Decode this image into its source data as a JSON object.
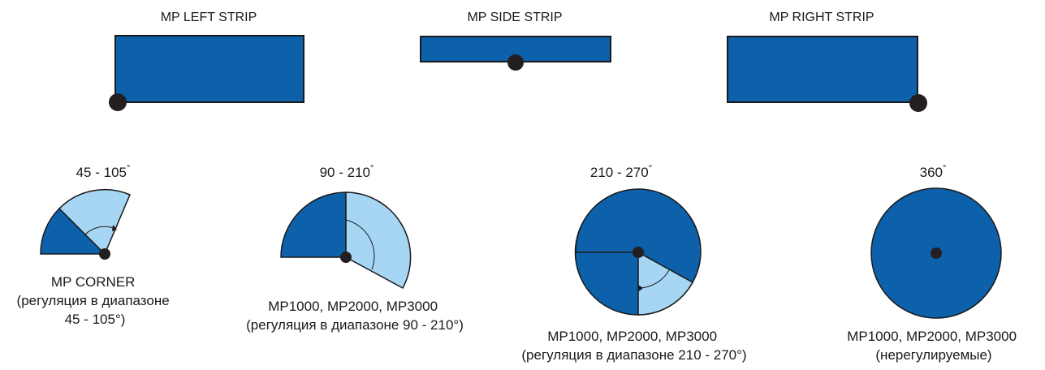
{
  "strips": [
    {
      "title": "MP LEFT STRIP"
    },
    {
      "title": "MP SIDE STRIP"
    },
    {
      "title": "MP RIGHT STRIP"
    }
  ],
  "sectors": [
    {
      "angle_label": "45 - 105",
      "caption": [
        "MP CORNER",
        "(регуляция в диапазоне",
        "45 - 105°)"
      ]
    },
    {
      "angle_label": "90 - 210",
      "caption": [
        "MP1000, MP2000, MP3000",
        "(регуляция в диапазоне 90 - 210°)"
      ]
    },
    {
      "angle_label": "210 - 270",
      "caption": [
        "MP1000, MP2000, MP3000",
        "(регуляция в диапазоне 210 - 270°)"
      ]
    },
    {
      "angle_label": "360",
      "caption": [
        "MP1000, MP2000, MP3000",
        "(нерегулируемые)"
      ]
    }
  ],
  "degree_symbol": "°",
  "colors": {
    "dark_blue": "#0d60aa",
    "light_blue": "#a6d6f4",
    "outline": "#1a1a1a",
    "pivot": "#231f20"
  }
}
